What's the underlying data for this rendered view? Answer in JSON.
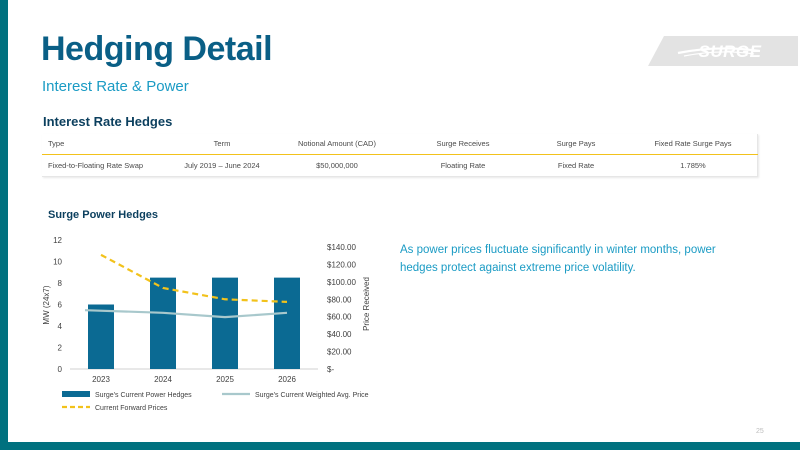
{
  "slide": {
    "title": "Hedging Detail",
    "subtitle": "Interest Rate & Power",
    "page_number": "25",
    "logo_text": "SURGE"
  },
  "interest_rate": {
    "heading": "Interest Rate Hedges",
    "columns": [
      "Type",
      "Term",
      "Notional Amount (CAD)",
      "Surge Receives",
      "Surge Pays",
      "Fixed Rate Surge Pays"
    ],
    "rows": [
      [
        "Fixed-to-Floating Rate Swap",
        "July 2019 – June 2024",
        "$50,000,000",
        "Floating Rate",
        "Fixed Rate",
        "1.785%"
      ]
    ]
  },
  "power": {
    "heading": "Surge Power Hedges",
    "description": "As power prices fluctuate significantly in winter months, power hedges protect against extreme price volatility."
  },
  "chart_data": {
    "type": "bar",
    "categories": [
      "2023",
      "2024",
      "2025",
      "2026"
    ],
    "series": [
      {
        "name": "Surge's Current Power Hedges",
        "kind": "bar",
        "axis": "left",
        "color": "#0b6a93",
        "values": [
          6,
          8.5,
          8.5,
          8.5
        ]
      },
      {
        "name": "Surge's Current Weighted Avg. Price",
        "kind": "line",
        "axis": "right",
        "color": "#a8c8cc",
        "values": [
          67.5,
          64.5,
          59.5,
          64.5
        ]
      },
      {
        "name": "Current Forward Prices",
        "kind": "dashed-line",
        "axis": "right",
        "color": "#f2c21b",
        "values": [
          131,
          93,
          80,
          77
        ]
      }
    ],
    "ylabel": "MW (24x7)",
    "y2label": "Price Received",
    "ylim": [
      0,
      12
    ],
    "yticks": [
      "0",
      "2",
      "4",
      "6",
      "8",
      "10",
      "12"
    ],
    "y2lim": [
      0,
      140
    ],
    "y2ticks": [
      "$-",
      "$20.00",
      "$40.00",
      "$60.00",
      "$80.00",
      "$100.00",
      "$120.00",
      "$140.00"
    ],
    "legend": "bottom",
    "grid": false
  }
}
